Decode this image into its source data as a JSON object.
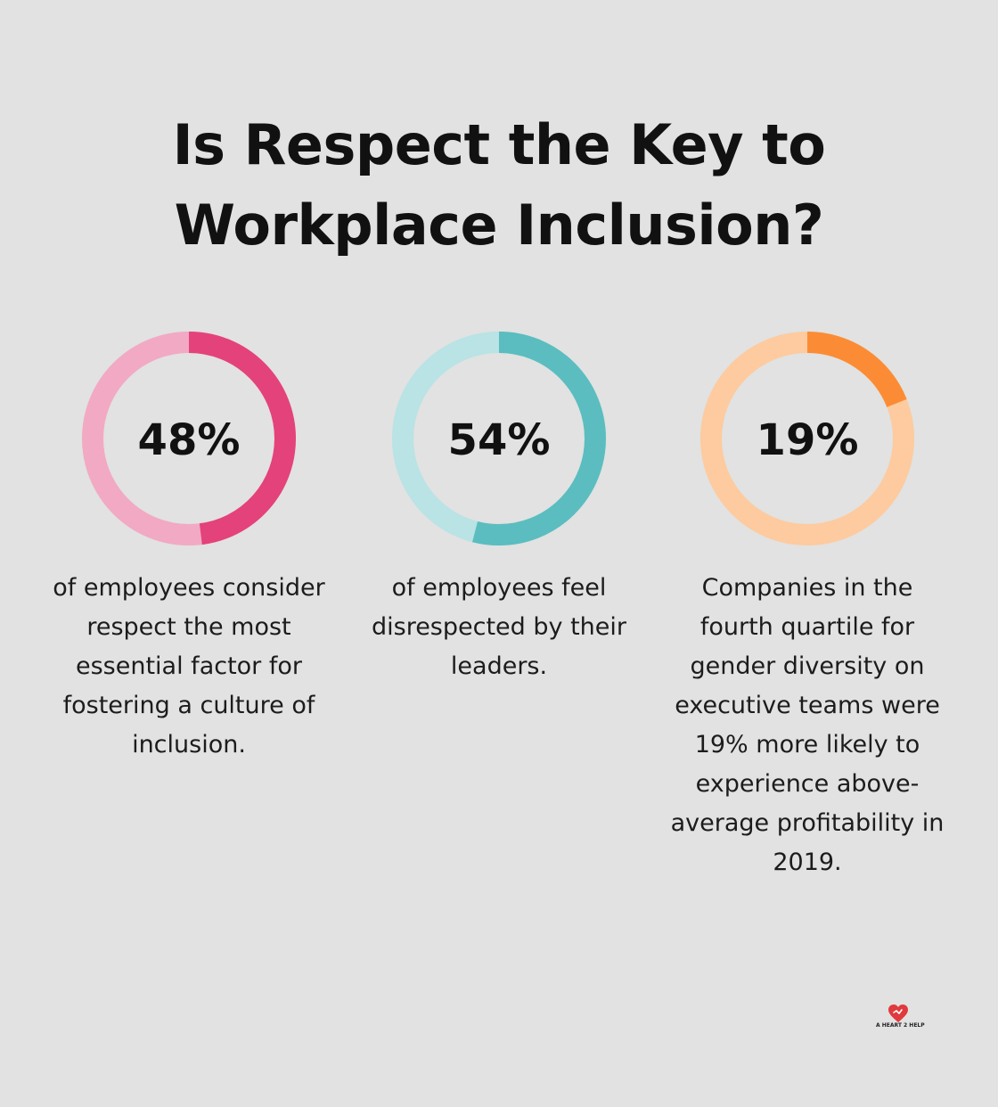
{
  "title_lines": [
    "Is Respect the Key to",
    "Workplace Inclusion?"
  ],
  "chart_data": [
    {
      "type": "pie",
      "variant": "donut",
      "value": 48,
      "value_label": "48%",
      "description": "of employees consider respect the most essential factor for fostering a culture of inclusion.",
      "colors": {
        "filled": "#e4427a",
        "track": "#f2a9c4"
      }
    },
    {
      "type": "pie",
      "variant": "donut",
      "value": 54,
      "value_label": "54%",
      "description": "of employees feel disrespected by their leaders.",
      "colors": {
        "filled": "#5bbdbf",
        "track": "#b9e3e4"
      }
    },
    {
      "type": "pie",
      "variant": "donut",
      "value": 19,
      "value_label": "19%",
      "description": "Companies in the fourth quartile for gender diversity on executive teams were 19% more likely to experience above-average profitability in 2019.",
      "colors": {
        "filled": "#fb8c35",
        "track": "#fdcb9f"
      }
    }
  ],
  "logo": {
    "text": "A HEART 2 HELP",
    "icon": "heart-logo-icon",
    "color": "#e0393e"
  }
}
